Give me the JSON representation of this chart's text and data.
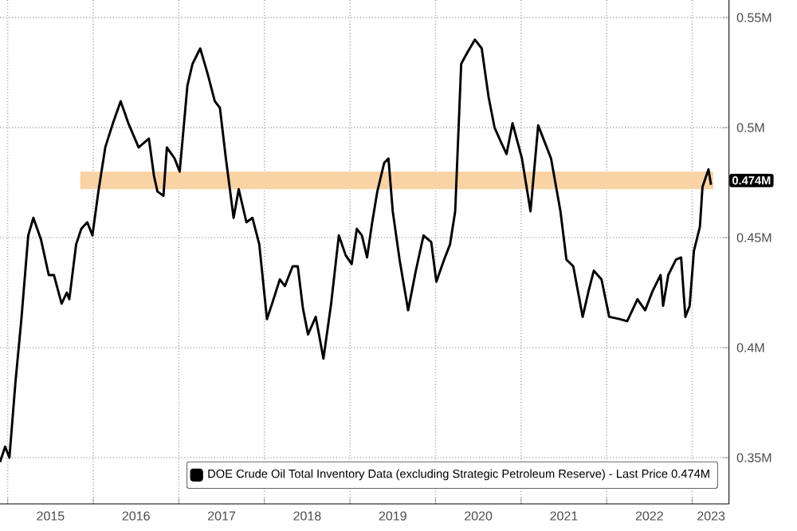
{
  "chart_data": {
    "type": "line",
    "x": [
      2014.91,
      2014.97,
      2015.02,
      2015.09,
      2015.16,
      2015.24,
      2015.3,
      2015.39,
      2015.48,
      2015.54,
      2015.63,
      2015.69,
      2015.72,
      2015.8,
      2015.86,
      2015.93,
      2015.99,
      2016.06,
      2016.14,
      2016.23,
      2016.32,
      2016.41,
      2016.53,
      2016.65,
      2016.71,
      2016.75,
      2016.82,
      2016.86,
      2016.95,
      2017.01,
      2017.1,
      2017.16,
      2017.25,
      2017.34,
      2017.42,
      2017.48,
      2017.55,
      2017.64,
      2017.7,
      2017.79,
      2017.86,
      2017.94,
      2018.03,
      2018.09,
      2018.18,
      2018.24,
      2018.33,
      2018.39,
      2018.45,
      2018.51,
      2018.6,
      2018.69,
      2018.78,
      2018.87,
      2018.95,
      2019.02,
      2019.08,
      2019.14,
      2019.2,
      2019.26,
      2019.32,
      2019.4,
      2019.45,
      2019.5,
      2019.58,
      2019.68,
      2019.77,
      2019.86,
      2019.95,
      2020.01,
      2020.1,
      2020.17,
      2020.23,
      2020.3,
      2020.37,
      2020.46,
      2020.54,
      2020.62,
      2020.69,
      2020.77,
      2020.83,
      2020.9,
      2021.01,
      2021.11,
      2021.2,
      2021.28,
      2021.35,
      2021.46,
      2021.53,
      2021.61,
      2021.72,
      2021.79,
      2021.85,
      2021.94,
      2022.03,
      2022.15,
      2022.24,
      2022.36,
      2022.45,
      2022.54,
      2022.63,
      2022.66,
      2022.72,
      2022.81,
      2022.87,
      2022.92,
      2022.97,
      2023.02,
      2023.09,
      2023.12,
      2023.19,
      2023.22
    ],
    "series": [
      {
        "name": "DOE Crude Oil Total Inventory Data (excluding Strategic Petroleum Reserve) - Last Price 0.474M",
        "color": "#000000",
        "values": [
          0.348,
          0.355,
          0.35,
          0.384,
          0.413,
          0.451,
          0.459,
          0.449,
          0.433,
          0.433,
          0.42,
          0.425,
          0.422,
          0.447,
          0.454,
          0.457,
          0.451,
          0.471,
          0.491,
          0.502,
          0.512,
          0.502,
          0.491,
          0.495,
          0.478,
          0.471,
          0.469,
          0.491,
          0.486,
          0.48,
          0.519,
          0.529,
          0.536,
          0.524,
          0.512,
          0.509,
          0.486,
          0.459,
          0.472,
          0.457,
          0.459,
          0.447,
          0.413,
          0.42,
          0.431,
          0.428,
          0.437,
          0.437,
          0.418,
          0.406,
          0.414,
          0.395,
          0.42,
          0.451,
          0.442,
          0.438,
          0.454,
          0.451,
          0.441,
          0.457,
          0.471,
          0.484,
          0.486,
          0.462,
          0.44,
          0.417,
          0.435,
          0.451,
          0.448,
          0.43,
          0.44,
          0.447,
          0.462,
          0.529,
          0.534,
          0.54,
          0.536,
          0.514,
          0.5,
          0.493,
          0.488,
          0.502,
          0.486,
          0.462,
          0.501,
          0.493,
          0.486,
          0.462,
          0.44,
          0.437,
          0.414,
          0.426,
          0.435,
          0.431,
          0.414,
          0.413,
          0.412,
          0.422,
          0.417,
          0.426,
          0.433,
          0.419,
          0.433,
          0.44,
          0.441,
          0.414,
          0.419,
          0.444,
          0.455,
          0.473,
          0.481,
          0.474
        ]
      }
    ],
    "xlim": [
      2014.91,
      2023.43
    ],
    "ylim": [
      0.329,
      0.558
    ],
    "xticks": [
      {
        "value": 2015,
        "label": null
      },
      {
        "value": 2015.5,
        "label": "2015"
      },
      {
        "value": 2016,
        "label": null
      },
      {
        "value": 2016.5,
        "label": "2016"
      },
      {
        "value": 2017,
        "label": null
      },
      {
        "value": 2017.5,
        "label": "2017"
      },
      {
        "value": 2018,
        "label": null
      },
      {
        "value": 2018.5,
        "label": "2018"
      },
      {
        "value": 2019,
        "label": null
      },
      {
        "value": 2019.5,
        "label": "2019"
      },
      {
        "value": 2020,
        "label": null
      },
      {
        "value": 2020.5,
        "label": "2020"
      },
      {
        "value": 2021,
        "label": null
      },
      {
        "value": 2021.5,
        "label": "2021"
      },
      {
        "value": 2022,
        "label": null
      },
      {
        "value": 2022.5,
        "label": "2022"
      },
      {
        "value": 2023,
        "label": null
      },
      {
        "value": 2023.22,
        "label": "2023"
      }
    ],
    "yticks": [
      {
        "value": 0.35,
        "label": "0.35M"
      },
      {
        "value": 0.4,
        "label": "0.4M"
      },
      {
        "value": 0.45,
        "label": "0.45M"
      },
      {
        "value": 0.5,
        "label": "0.5M"
      },
      {
        "value": 0.55,
        "label": "0.55M"
      }
    ],
    "bands": [
      {
        "axis": "y",
        "from": 0.472,
        "to": 0.48,
        "label": "0.474M",
        "color": "#f9d3a3"
      }
    ],
    "grid": true,
    "legend": "bottom right",
    "marker": "none",
    "line_style": "solid"
  }
}
